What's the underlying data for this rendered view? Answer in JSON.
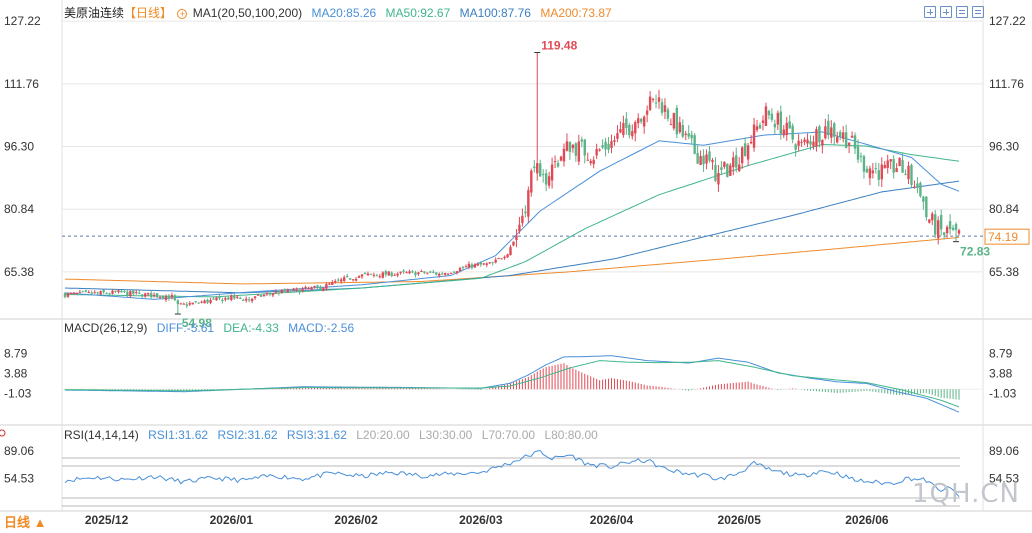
{
  "colors": {
    "up": "#e04a55",
    "down": "#5bb388",
    "ma20": "#4a90d9",
    "ma50": "#3fb68b",
    "ma100": "#3b7fc0",
    "ma200": "#ef8a2c",
    "macd_diff": "#4a90d9",
    "macd_dea": "#3fb68b",
    "rsi": "#4a90d9",
    "grid": "#e6e6e6",
    "current_price": "#ef8a2c",
    "accent": "#f08a24"
  },
  "main_legend": {
    "title": "美原油连续",
    "period_tag": "【日线】",
    "settings_icon": "settings-circle-icon",
    "ma_params": "MA1(20,50,100,200)",
    "ma20": "MA20:85.26",
    "ma50": "MA50:92.67",
    "ma100": "MA100:87.76",
    "ma200": "MA200:73.87"
  },
  "toolbar_icons": [
    "zoom-in-icon",
    "zoom-out-icon",
    "indicator-icon",
    "layout-icon"
  ],
  "y_axis_main": [
    "127.22",
    "111.76",
    "96.30",
    "80.84",
    "65.38"
  ],
  "current_price_label": "74.19",
  "annotations": {
    "high": "119.48",
    "low": "54.98",
    "last_low": "72.83"
  },
  "macd_legend": {
    "title": "MACD(26,12,9)",
    "diff": "DIFF:-5.61",
    "dea": "DEA:-4.33",
    "macd": "MACD:-2.56"
  },
  "y_axis_macd": [
    "8.79",
    "3.88",
    "-1.03"
  ],
  "rsi_legend": {
    "title": "RSI(14,14,14)",
    "rsi1": "RSI1:31.62",
    "rsi2": "RSI2:31.62",
    "rsi3": "RSI3:31.62",
    "l20": "L20:20.00",
    "l30": "L30:30.00",
    "l70": "L70:70.00",
    "l80": "L80:80.00"
  },
  "y_axis_rsi": [
    "89.06",
    "54.53"
  ],
  "x_axis": [
    "2025/12",
    "2026/01",
    "2026/02",
    "2026/03",
    "2026/04",
    "2026/05",
    "2026/06"
  ],
  "period_button": "日线 ▲",
  "watermark": "1QH.CN",
  "chart_data": {
    "type": "candlestick",
    "price_ylim": [
      54,
      128
    ],
    "ma_anchors": {
      "ma20": [
        [
          0,
          60.2
        ],
        [
          30,
          58.6
        ],
        [
          60,
          60.3
        ],
        [
          100,
          62.2
        ],
        [
          130,
          64.5
        ],
        [
          145,
          69.4
        ],
        [
          160,
          80.4
        ],
        [
          180,
          90.2
        ],
        [
          200,
          97.7
        ],
        [
          215,
          96.6
        ],
        [
          235,
          99.1
        ],
        [
          255,
          99.9
        ],
        [
          270,
          96.8
        ],
        [
          285,
          93.6
        ],
        [
          295,
          87.0
        ],
        [
          301,
          85.26
        ]
      ],
      "ma50": [
        [
          0,
          59.8
        ],
        [
          50,
          59.2
        ],
        [
          100,
          61.4
        ],
        [
          140,
          63.8
        ],
        [
          155,
          67.9
        ],
        [
          175,
          76.0
        ],
        [
          200,
          84.4
        ],
        [
          230,
          91.6
        ],
        [
          255,
          96.8
        ],
        [
          270,
          96.4
        ],
        [
          285,
          94.3
        ],
        [
          301,
          92.67
        ]
      ],
      "ma100": [
        [
          0,
          61.4
        ],
        [
          60,
          60.2
        ],
        [
          100,
          61.4
        ],
        [
          150,
          64.5
        ],
        [
          185,
          68.6
        ],
        [
          215,
          74.0
        ],
        [
          245,
          79.3
        ],
        [
          275,
          85.1
        ],
        [
          301,
          87.76
        ]
      ],
      "ma200": [
        [
          0,
          63.6
        ],
        [
          60,
          62.4
        ],
        [
          120,
          63.0
        ],
        [
          170,
          65.4
        ],
        [
          220,
          68.5
        ],
        [
          260,
          71.1
        ],
        [
          301,
          73.87
        ]
      ]
    },
    "price_anchors": [
      [
        0,
        59.8
      ],
      [
        18,
        60.3
      ],
      [
        36,
        59.2
      ],
      [
        38,
        57.0
      ],
      [
        42,
        57.5
      ],
      [
        56,
        59.0
      ],
      [
        62,
        58.6
      ],
      [
        70,
        60.2
      ],
      [
        86,
        61.5
      ],
      [
        94,
        63.5
      ],
      [
        100,
        64.5
      ],
      [
        112,
        65.0
      ],
      [
        122,
        65.2
      ],
      [
        126,
        64.8
      ],
      [
        136,
        66.8
      ],
      [
        144,
        67.4
      ],
      [
        146,
        68.5
      ],
      [
        149,
        70.2
      ],
      [
        152,
        74.7
      ],
      [
        156,
        84.7
      ],
      [
        158,
        93.4
      ],
      [
        160,
        86.5
      ],
      [
        164,
        91.2
      ],
      [
        170,
        96.8
      ],
      [
        178,
        94.3
      ],
      [
        184,
        97.3
      ],
      [
        190,
        101.3
      ],
      [
        196,
        106.3
      ],
      [
        200,
        107.8
      ],
      [
        204,
        103.3
      ],
      [
        208,
        99.0
      ],
      [
        212,
        95.0
      ],
      [
        216,
        93.0
      ],
      [
        220,
        88.9
      ],
      [
        224,
        91.6
      ],
      [
        228,
        95.2
      ],
      [
        232,
        99.6
      ],
      [
        236,
        104.3
      ],
      [
        240,
        102.5
      ],
      [
        244,
        99.0
      ],
      [
        248,
        96.2
      ],
      [
        252,
        98.9
      ],
      [
        256,
        100.8
      ],
      [
        260,
        99.8
      ],
      [
        264,
        98.0
      ],
      [
        268,
        92.6
      ],
      [
        272,
        90.6
      ],
      [
        276,
        90.0
      ],
      [
        280,
        91.6
      ],
      [
        284,
        89.6
      ],
      [
        286,
        86.4
      ],
      [
        288,
        85.8
      ],
      [
        290,
        79.2
      ],
      [
        292,
        77.4
      ],
      [
        294,
        75.7
      ],
      [
        296,
        74.9
      ],
      [
        298,
        75.6
      ],
      [
        300,
        74.2
      ],
      [
        301,
        74.19
      ]
    ],
    "high": 119.48,
    "low": 54.98,
    "last": 74.19,
    "last_low": 72.83,
    "macd_ylim": [
      -8.5,
      13.5
    ],
    "diff_anchors": [
      [
        0,
        -0.2
      ],
      [
        40,
        -0.6
      ],
      [
        80,
        0.6
      ],
      [
        120,
        0.4
      ],
      [
        140,
        0.2
      ],
      [
        150,
        1.5
      ],
      [
        156,
        3.5
      ],
      [
        162,
        6.0
      ],
      [
        168,
        7.9
      ],
      [
        176,
        8.0
      ],
      [
        184,
        8.2
      ],
      [
        196,
        7.0
      ],
      [
        210,
        6.4
      ],
      [
        220,
        7.6
      ],
      [
        230,
        6.6
      ],
      [
        240,
        4.0
      ],
      [
        250,
        2.8
      ],
      [
        260,
        1.8
      ],
      [
        270,
        1.4
      ],
      [
        280,
        -0.6
      ],
      [
        290,
        -2.2
      ],
      [
        301,
        -5.61
      ]
    ],
    "dea_anchors": [
      [
        0,
        -0.1
      ],
      [
        40,
        -0.4
      ],
      [
        80,
        0.4
      ],
      [
        120,
        0.3
      ],
      [
        140,
        0.3
      ],
      [
        150,
        0.8
      ],
      [
        160,
        2.8
      ],
      [
        170,
        5.2
      ],
      [
        180,
        7.0
      ],
      [
        190,
        6.6
      ],
      [
        200,
        6.5
      ],
      [
        210,
        6.6
      ],
      [
        220,
        7.0
      ],
      [
        232,
        5.4
      ],
      [
        245,
        3.3
      ],
      [
        258,
        2.4
      ],
      [
        270,
        1.6
      ],
      [
        282,
        -0.2
      ],
      [
        295,
        -2.7
      ],
      [
        301,
        -4.33
      ]
    ],
    "rsi_ylim": [
      15,
      100
    ],
    "rsi_anchors": [
      [
        0,
        52
      ],
      [
        10,
        56
      ],
      [
        20,
        53
      ],
      [
        30,
        57
      ],
      [
        40,
        50
      ],
      [
        50,
        55
      ],
      [
        60,
        52
      ],
      [
        70,
        58
      ],
      [
        80,
        54
      ],
      [
        90,
        61
      ],
      [
        100,
        57
      ],
      [
        110,
        62
      ],
      [
        120,
        58
      ],
      [
        130,
        60
      ],
      [
        140,
        62
      ],
      [
        150,
        74
      ],
      [
        156,
        83
      ],
      [
        160,
        88
      ],
      [
        164,
        79
      ],
      [
        170,
        84
      ],
      [
        176,
        72
      ],
      [
        184,
        69
      ],
      [
        190,
        75
      ],
      [
        196,
        77
      ],
      [
        202,
        66
      ],
      [
        210,
        60
      ],
      [
        216,
        58
      ],
      [
        220,
        53
      ],
      [
        226,
        60
      ],
      [
        232,
        73
      ],
      [
        238,
        64
      ],
      [
        244,
        60
      ],
      [
        248,
        57
      ],
      [
        254,
        64
      ],
      [
        260,
        61
      ],
      [
        266,
        52
      ],
      [
        272,
        50
      ],
      [
        278,
        48
      ],
      [
        284,
        55
      ],
      [
        290,
        52
      ],
      [
        294,
        40
      ],
      [
        298,
        42
      ],
      [
        301,
        31.62
      ]
    ],
    "rsi_levels": [
      80,
      70,
      30,
      20
    ]
  }
}
